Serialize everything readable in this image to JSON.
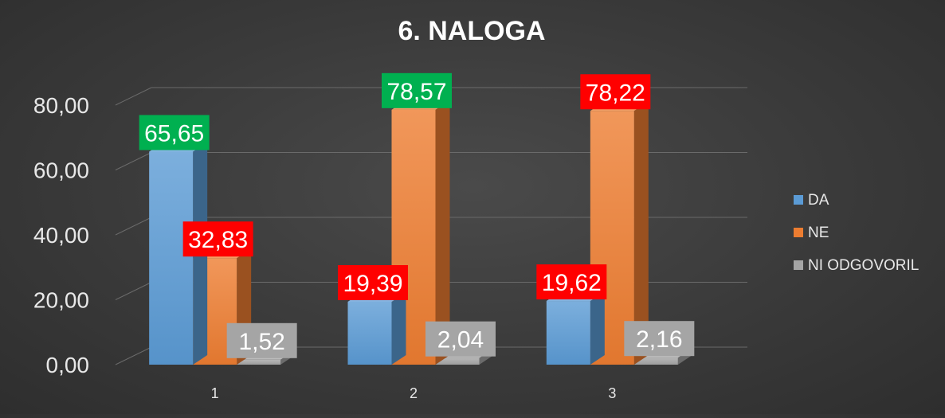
{
  "chart_data": {
    "type": "bar",
    "title": "6. NALOGA",
    "categories": [
      "1",
      "2",
      "3"
    ],
    "series": [
      {
        "name": "DA",
        "values": [
          65.65,
          19.39,
          19.62
        ],
        "color": "#5B9BD5"
      },
      {
        "name": "NE",
        "values": [
          32.83,
          78.57,
          78.22
        ],
        "color": "#ED7D31"
      },
      {
        "name": "NI ODGOVORIL",
        "values": [
          1.52,
          2.04,
          2.16
        ],
        "color": "#A5A5A5"
      }
    ],
    "data_labels": [
      [
        "65,65",
        "19,39",
        "19,62"
      ],
      [
        "32,83",
        "78,57",
        "78,22"
      ],
      [
        "1,52",
        "2,04",
        "2,16"
      ]
    ],
    "label_colors": [
      [
        "#00B050",
        "#FF0000",
        "#FF0000"
      ],
      [
        "#FF0000",
        "#00B050",
        "#FF0000"
      ],
      [
        "#A5A5A5",
        "#A5A5A5",
        "#A5A5A5"
      ]
    ],
    "y_ticks": [
      "0,00",
      "20,00",
      "40,00",
      "60,00",
      "80,00"
    ],
    "ylim": [
      0,
      80
    ],
    "grid": true,
    "legend_position": "right",
    "style": "3d-clustered-column"
  }
}
